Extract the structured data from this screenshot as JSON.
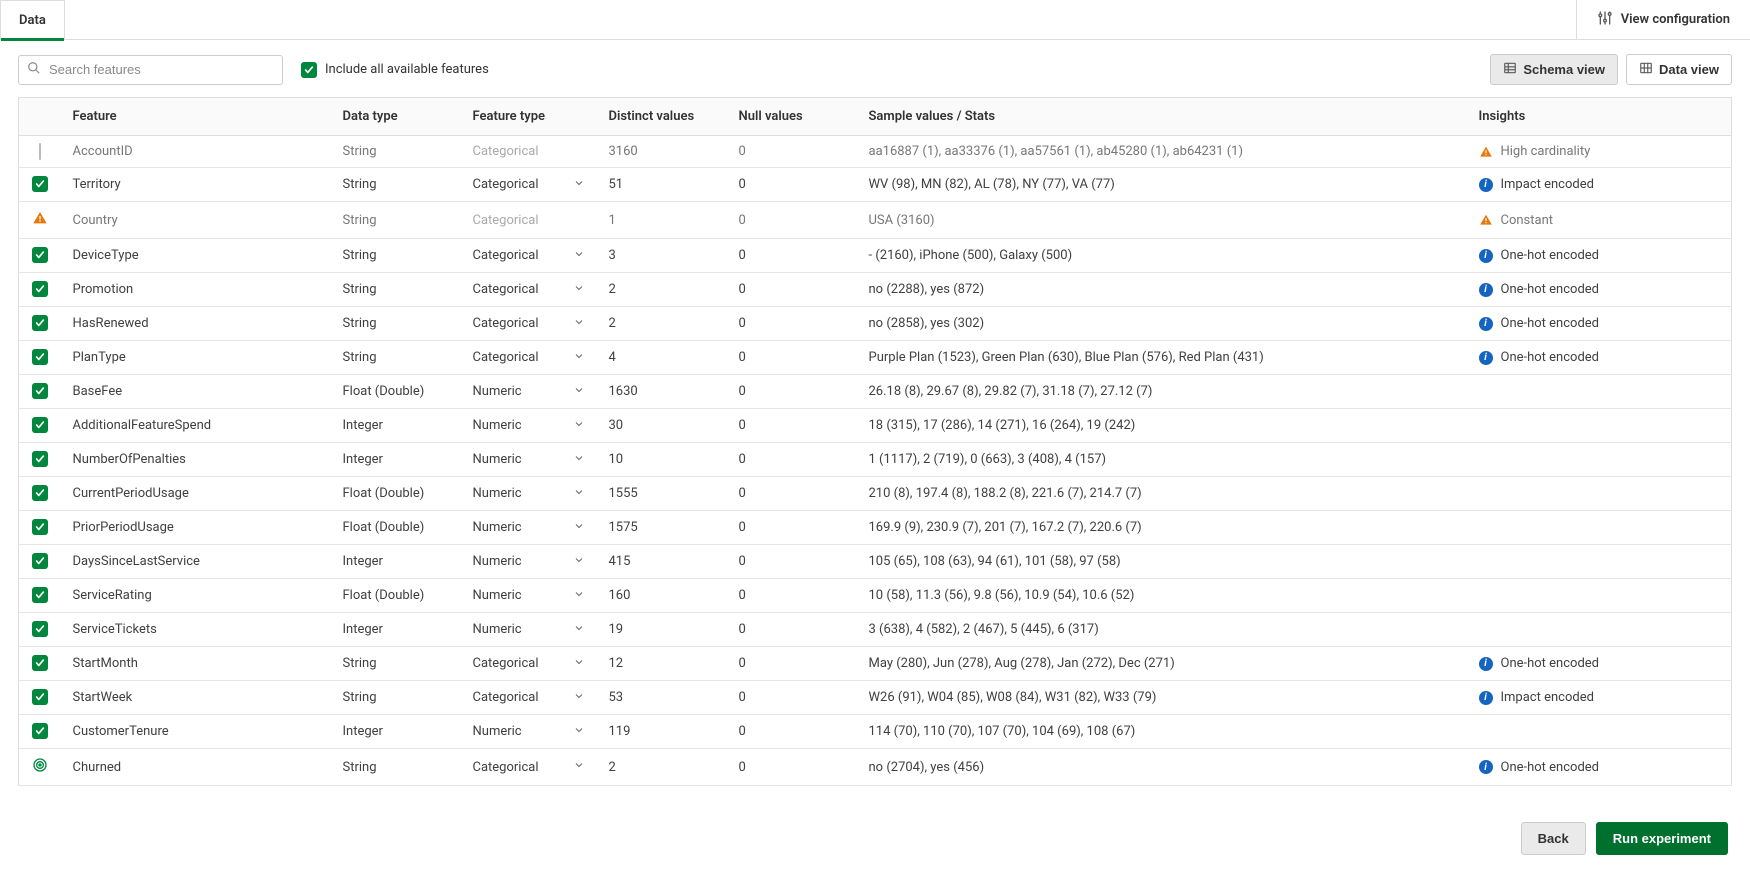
{
  "tabs": {
    "data": "Data"
  },
  "view_config_label": "View configuration",
  "search": {
    "placeholder": "Search features"
  },
  "include_all_label": "Include all available features",
  "views": {
    "schema": "Schema view",
    "data": "Data view"
  },
  "columns": {
    "feature": "Feature",
    "data_type": "Data type",
    "feature_type": "Feature type",
    "distinct": "Distinct values",
    "null": "Null values",
    "sample": "Sample values / Stats",
    "insights": "Insights"
  },
  "insight_labels": {
    "high_cardinality": "High cardinality",
    "impact_encoded": "Impact encoded",
    "constant": "Constant",
    "one_hot": "One-hot encoded"
  },
  "rows": [
    {
      "sel": "empty",
      "feature": "AccountID",
      "data_type": "String",
      "feature_type": "Categorical",
      "ft_editable": false,
      "distinct": "3160",
      "null": "0",
      "sample": "aa16887 (1), aa33376 (1), aa57561 (1), ab45280 (1), ab64231 (1)",
      "insight_kind": "warning",
      "insight": "high_cardinality"
    },
    {
      "sel": "checked",
      "feature": "Territory",
      "data_type": "String",
      "feature_type": "Categorical",
      "ft_editable": true,
      "distinct": "51",
      "null": "0",
      "sample": "WV (98), MN (82), AL (78), NY (77), VA (77)",
      "insight_kind": "info",
      "insight": "impact_encoded"
    },
    {
      "sel": "warning",
      "feature": "Country",
      "data_type": "String",
      "feature_type": "Categorical",
      "ft_editable": false,
      "distinct": "1",
      "null": "0",
      "sample": "USA (3160)",
      "insight_kind": "warning",
      "insight": "constant"
    },
    {
      "sel": "checked",
      "feature": "DeviceType",
      "data_type": "String",
      "feature_type": "Categorical",
      "ft_editable": true,
      "distinct": "3",
      "null": "0",
      "sample": "- (2160), iPhone (500), Galaxy (500)",
      "insight_kind": "info",
      "insight": "one_hot"
    },
    {
      "sel": "checked",
      "feature": "Promotion",
      "data_type": "String",
      "feature_type": "Categorical",
      "ft_editable": true,
      "distinct": "2",
      "null": "0",
      "sample": "no (2288), yes (872)",
      "insight_kind": "info",
      "insight": "one_hot"
    },
    {
      "sel": "checked",
      "feature": "HasRenewed",
      "data_type": "String",
      "feature_type": "Categorical",
      "ft_editable": true,
      "distinct": "2",
      "null": "0",
      "sample": "no (2858), yes (302)",
      "insight_kind": "info",
      "insight": "one_hot"
    },
    {
      "sel": "checked",
      "feature": "PlanType",
      "data_type": "String",
      "feature_type": "Categorical",
      "ft_editable": true,
      "distinct": "4",
      "null": "0",
      "sample": "Purple Plan (1523), Green Plan (630), Blue Plan (576), Red Plan (431)",
      "insight_kind": "info",
      "insight": "one_hot"
    },
    {
      "sel": "checked",
      "feature": "BaseFee",
      "data_type": "Float (Double)",
      "feature_type": "Numeric",
      "ft_editable": true,
      "distinct": "1630",
      "null": "0",
      "sample": "26.18 (8), 29.67 (8), 29.82 (7), 31.18 (7), 27.12 (7)",
      "insight_kind": "none"
    },
    {
      "sel": "checked",
      "feature": "AdditionalFeatureSpend",
      "data_type": "Integer",
      "feature_type": "Numeric",
      "ft_editable": true,
      "distinct": "30",
      "null": "0",
      "sample": "18 (315), 17 (286), 14 (271), 16 (264), 19 (242)",
      "insight_kind": "none"
    },
    {
      "sel": "checked",
      "feature": "NumberOfPenalties",
      "data_type": "Integer",
      "feature_type": "Numeric",
      "ft_editable": true,
      "distinct": "10",
      "null": "0",
      "sample": "1 (1117), 2 (719), 0 (663), 3 (408), 4 (157)",
      "insight_kind": "none"
    },
    {
      "sel": "checked",
      "feature": "CurrentPeriodUsage",
      "data_type": "Float (Double)",
      "feature_type": "Numeric",
      "ft_editable": true,
      "distinct": "1555",
      "null": "0",
      "sample": "210 (8), 197.4 (8), 188.2 (8), 221.6 (7), 214.7 (7)",
      "insight_kind": "none"
    },
    {
      "sel": "checked",
      "feature": "PriorPeriodUsage",
      "data_type": "Float (Double)",
      "feature_type": "Numeric",
      "ft_editable": true,
      "distinct": "1575",
      "null": "0",
      "sample": "169.9 (9), 230.9 (7), 201 (7), 167.2 (7), 220.6 (7)",
      "insight_kind": "none"
    },
    {
      "sel": "checked",
      "feature": "DaysSinceLastService",
      "data_type": "Integer",
      "feature_type": "Numeric",
      "ft_editable": true,
      "distinct": "415",
      "null": "0",
      "sample": "105 (65), 108 (63), 94 (61), 101 (58), 97 (58)",
      "insight_kind": "none"
    },
    {
      "sel": "checked",
      "feature": "ServiceRating",
      "data_type": "Float (Double)",
      "feature_type": "Numeric",
      "ft_editable": true,
      "distinct": "160",
      "null": "0",
      "sample": "10 (58), 11.3 (56), 9.8 (56), 10.9 (54), 10.6 (52)",
      "insight_kind": "none"
    },
    {
      "sel": "checked",
      "feature": "ServiceTickets",
      "data_type": "Integer",
      "feature_type": "Numeric",
      "ft_editable": true,
      "distinct": "19",
      "null": "0",
      "sample": "3 (638), 4 (582), 2 (467), 5 (445), 6 (317)",
      "insight_kind": "none"
    },
    {
      "sel": "checked",
      "feature": "StartMonth",
      "data_type": "String",
      "feature_type": "Categorical",
      "ft_editable": true,
      "distinct": "12",
      "null": "0",
      "sample": "May (280), Jun (278), Aug (278), Jan (272), Dec (271)",
      "insight_kind": "info",
      "insight": "one_hot"
    },
    {
      "sel": "checked",
      "feature": "StartWeek",
      "data_type": "String",
      "feature_type": "Categorical",
      "ft_editable": true,
      "distinct": "53",
      "null": "0",
      "sample": "W26 (91), W04 (85), W08 (84), W31 (82), W33 (79)",
      "insight_kind": "info",
      "insight": "impact_encoded"
    },
    {
      "sel": "checked",
      "feature": "CustomerTenure",
      "data_type": "Integer",
      "feature_type": "Numeric",
      "ft_editable": true,
      "distinct": "119",
      "null": "0",
      "sample": "114 (70), 110 (70), 107 (70), 104 (69), 108 (67)",
      "insight_kind": "none"
    },
    {
      "sel": "target",
      "feature": "Churned",
      "data_type": "String",
      "feature_type": "Categorical",
      "ft_editable": true,
      "distinct": "2",
      "null": "0",
      "sample": "no (2704), yes (456)",
      "insight_kind": "info",
      "insight": "one_hot"
    }
  ],
  "footer": {
    "back": "Back",
    "run": "Run experiment"
  },
  "colors": {
    "accent_green": "#00873d",
    "btn_primary": "#00702e",
    "warning_orange": "#e8780d",
    "info_blue": "#1565c0"
  }
}
